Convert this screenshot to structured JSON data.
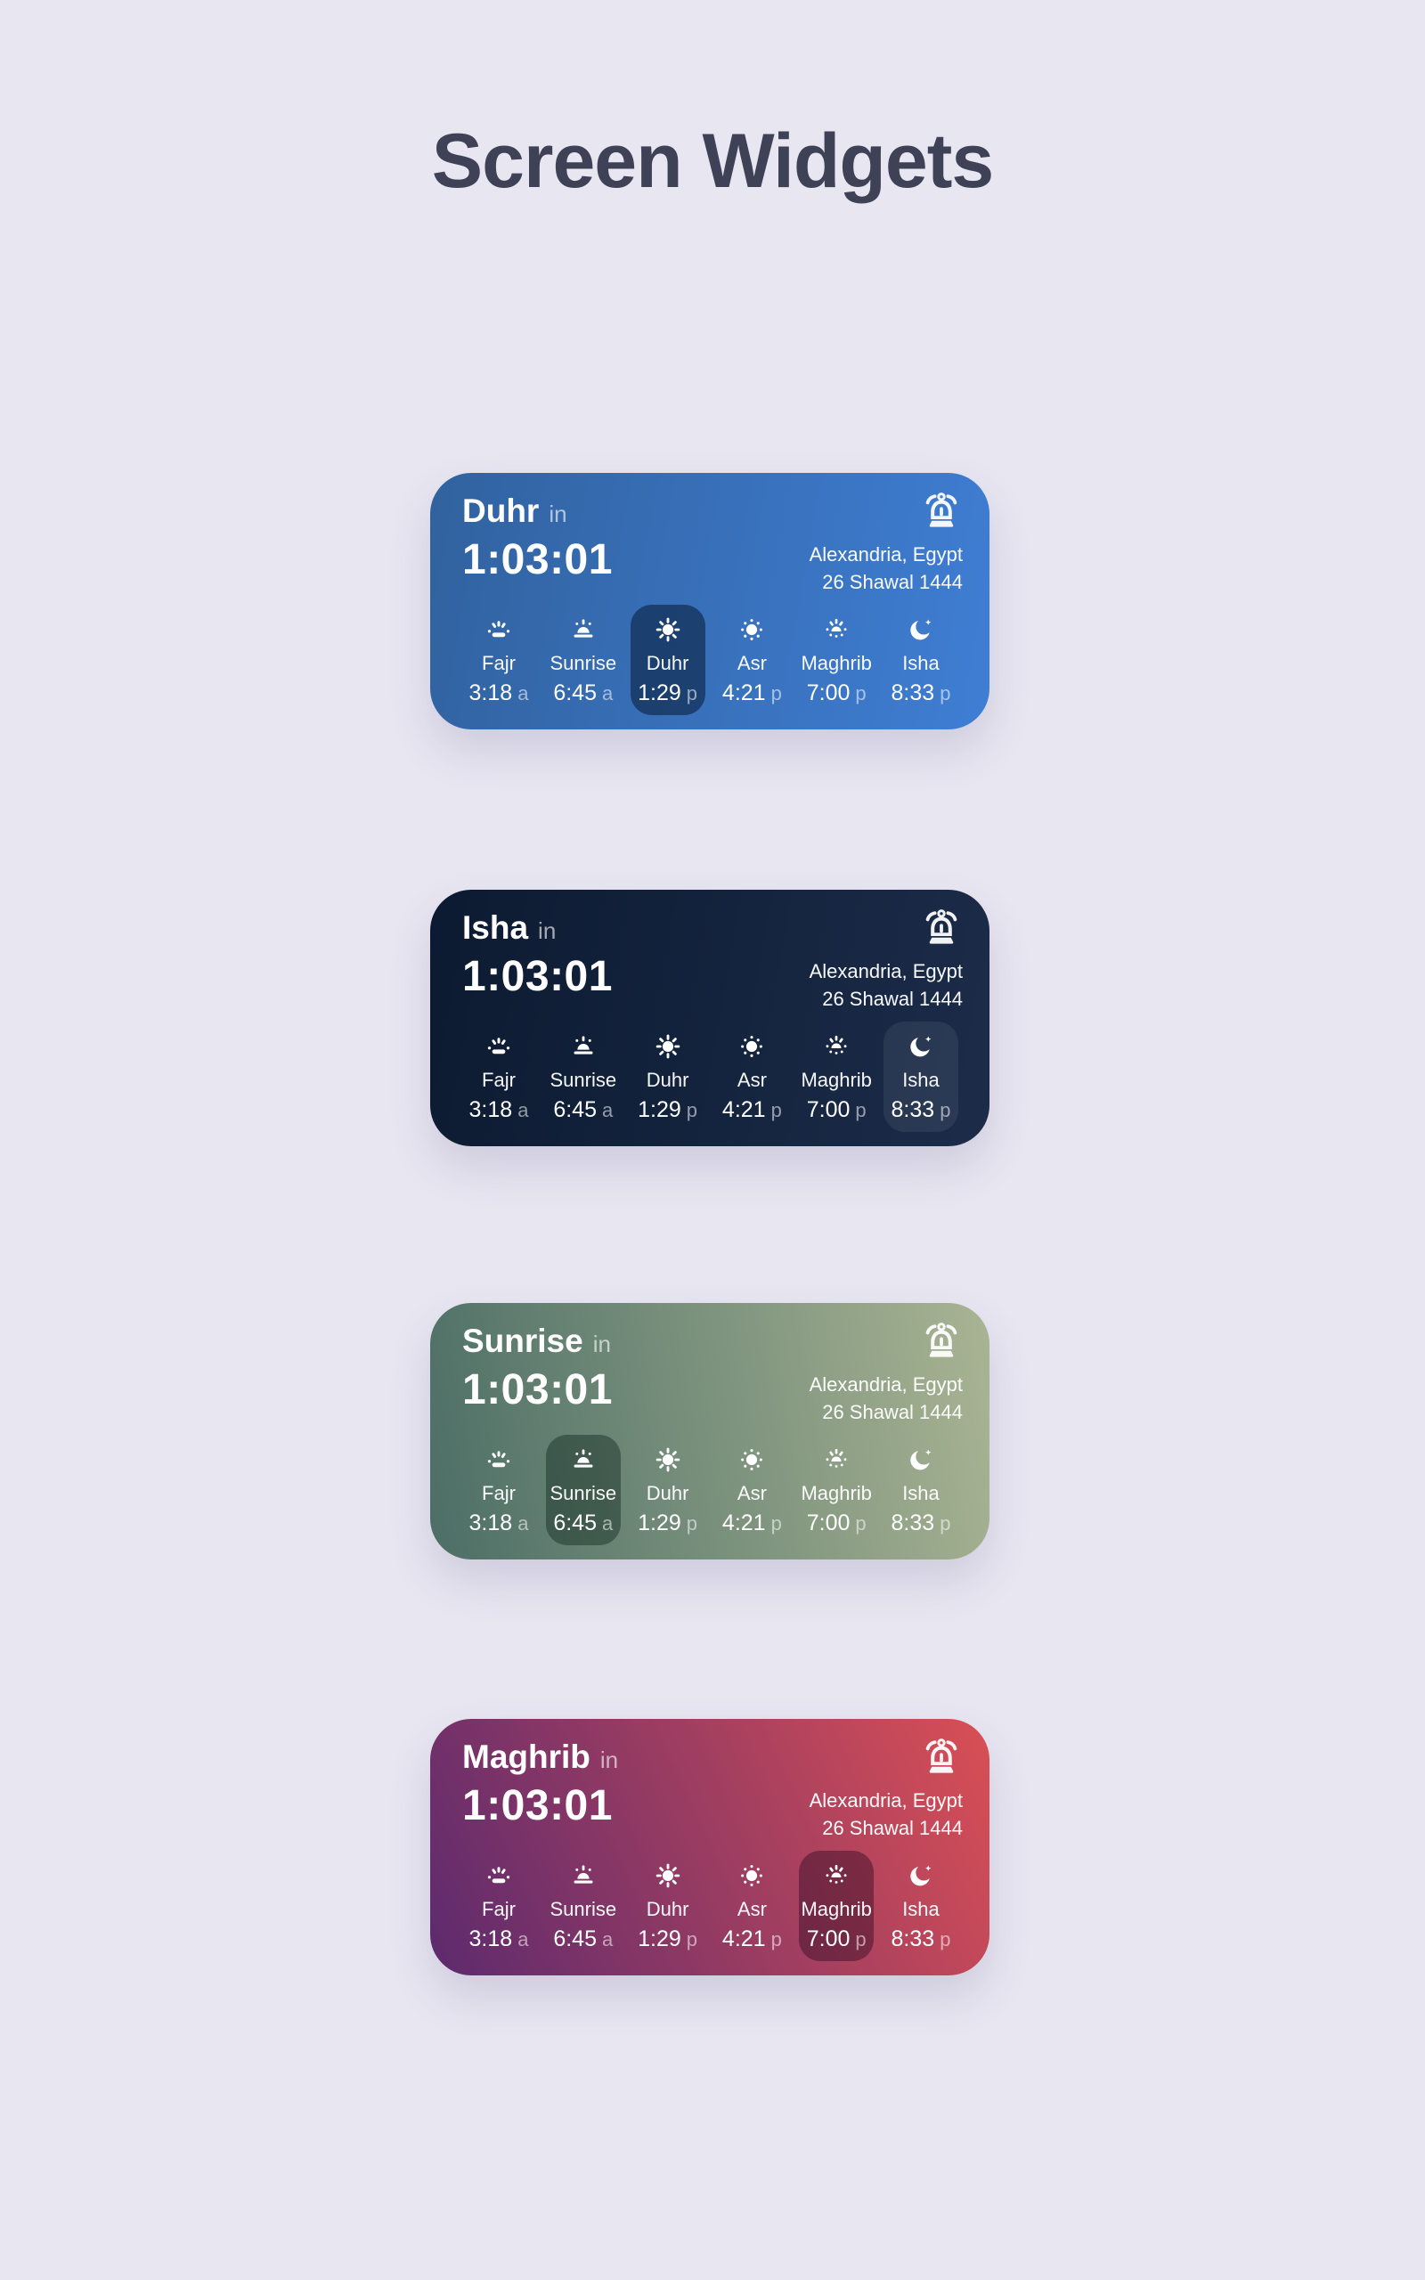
{
  "page": {
    "title": "Screen Widgets",
    "background_color": "#e8e6f1",
    "title_color": "#3f4257"
  },
  "shared": {
    "in_label": "in",
    "countdown": "1:03:01",
    "location": "Alexandria, Egypt",
    "hijri_date": "26 Shawal 1444",
    "alarm_icon": "alarm-bell-icon",
    "prayers": [
      {
        "name": "Fajr",
        "time": "3:18",
        "suffix": "a",
        "icon": "fajr-dawn-icon"
      },
      {
        "name": "Sunrise",
        "time": "6:45",
        "suffix": "a",
        "icon": "sunrise-icon"
      },
      {
        "name": "Duhr",
        "time": "1:29",
        "suffix": "p",
        "icon": "duhr-sun-icon"
      },
      {
        "name": "Asr",
        "time": "4:21",
        "suffix": "p",
        "icon": "asr-sun-icon"
      },
      {
        "name": "Maghrib",
        "time": "7:00",
        "suffix": "p",
        "icon": "maghrib-sunset-icon"
      },
      {
        "name": "Isha",
        "time": "8:33",
        "suffix": "p",
        "icon": "isha-moon-icon"
      }
    ]
  },
  "widgets": [
    {
      "name": "Duhr",
      "active_index": 2,
      "gradient_angle": "100deg",
      "gradient_start": "#31629f",
      "gradient_end": "#3f7ed4",
      "highlight_color": "rgba(5,26,52,0.55)"
    },
    {
      "name": "Isha",
      "active_index": 5,
      "gradient_angle": "100deg",
      "gradient_start": "#0c1a31",
      "gradient_end": "#1c2c49",
      "highlight_color": "rgba(255,255,255,0.07)"
    },
    {
      "name": "Sunrise",
      "active_index": 1,
      "gradient_angle": "80deg",
      "gradient_start": "#4c6e66",
      "gradient_end": "#a9b493",
      "highlight_color": "rgba(8,30,22,0.40)"
    },
    {
      "name": "Maghrib",
      "active_index": 4,
      "gradient_angle": "65deg",
      "gradient_start": "#5c2a6e",
      "gradient_end": "#d94f55",
      "highlight_color": "rgba(40,6,32,0.42)"
    }
  ]
}
